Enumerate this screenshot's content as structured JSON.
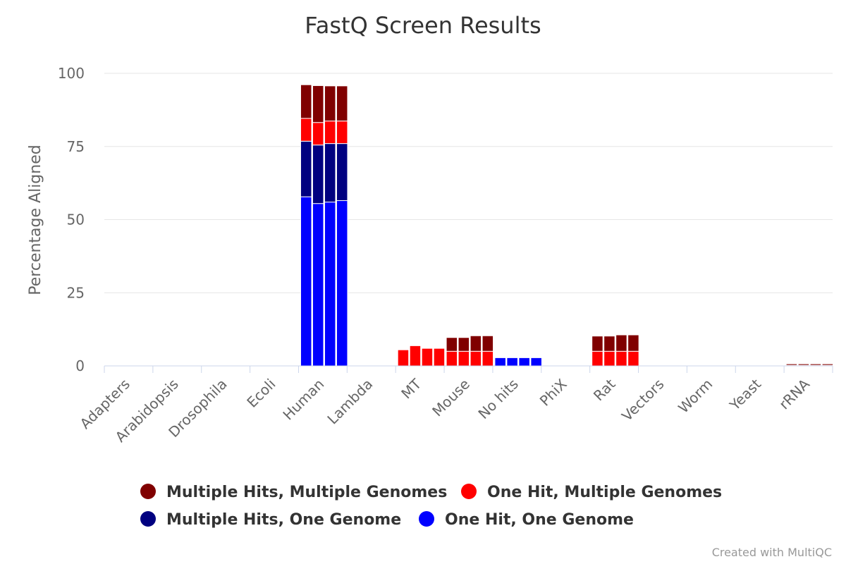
{
  "chart_data": {
    "type": "bar",
    "stacked": true,
    "title": "FastQ Screen Results",
    "xlabel": "",
    "ylabel": "Percentage Aligned",
    "ylim": [
      0,
      100
    ],
    "yticks": [
      0,
      25,
      50,
      75,
      100
    ],
    "grid": true,
    "legend_position": "bottom",
    "categories": [
      "Adapters",
      "Arabidopsis",
      "Drosophila",
      "Ecoli",
      "Human",
      "Lambda",
      "MT",
      "Mouse",
      "No hits",
      "PhiX",
      "Rat",
      "Vectors",
      "Worm",
      "Yeast",
      "rRNA"
    ],
    "samples_per_category": 4,
    "series": [
      {
        "name": "One Hit, One Genome",
        "color": "#0000ff",
        "values": [
          [
            0,
            0,
            0,
            0
          ],
          [
            0,
            0,
            0,
            0
          ],
          [
            0,
            0,
            0,
            0
          ],
          [
            0,
            0,
            0,
            0
          ],
          [
            57.8,
            55.5,
            56.0,
            56.5
          ],
          [
            0,
            0,
            0,
            0
          ],
          [
            0,
            0,
            0,
            0
          ],
          [
            0,
            0,
            0,
            0
          ],
          [
            2.8,
            2.8,
            2.8,
            2.8
          ],
          [
            0,
            0,
            0,
            0
          ],
          [
            0,
            0,
            0,
            0
          ],
          [
            0,
            0,
            0,
            0
          ],
          [
            0,
            0,
            0,
            0
          ],
          [
            0,
            0,
            0,
            0
          ],
          [
            0,
            0,
            0,
            0
          ]
        ]
      },
      {
        "name": "Multiple Hits, One Genome",
        "color": "#000080",
        "values": [
          [
            0,
            0,
            0,
            0
          ],
          [
            0,
            0,
            0,
            0
          ],
          [
            0,
            0,
            0,
            0
          ],
          [
            0,
            0,
            0,
            0
          ],
          [
            19.0,
            20.0,
            20.0,
            19.5
          ],
          [
            0,
            0,
            0,
            0
          ],
          [
            0,
            0,
            0,
            0
          ],
          [
            0,
            0,
            0,
            0
          ],
          [
            0,
            0,
            0,
            0
          ],
          [
            0,
            0,
            0,
            0
          ],
          [
            0,
            0,
            0,
            0
          ],
          [
            0,
            0,
            0,
            0
          ],
          [
            0,
            0,
            0,
            0
          ],
          [
            0,
            0,
            0,
            0
          ],
          [
            0,
            0,
            0,
            0
          ]
        ]
      },
      {
        "name": "One Hit, Multiple Genomes",
        "color": "#ff0000",
        "values": [
          [
            0,
            0,
            0,
            0
          ],
          [
            0,
            0,
            0,
            0
          ],
          [
            0,
            0,
            0,
            0
          ],
          [
            0,
            0,
            0,
            0
          ],
          [
            7.8,
            7.7,
            7.7,
            7.7
          ],
          [
            0,
            0,
            0,
            0
          ],
          [
            5.5,
            6.9,
            6.0,
            6.0
          ],
          [
            5.0,
            5.0,
            5.0,
            5.0
          ],
          [
            0,
            0,
            0,
            0
          ],
          [
            0,
            0,
            0,
            0
          ],
          [
            5.0,
            5.0,
            5.0,
            5.0
          ],
          [
            0,
            0,
            0,
            0
          ],
          [
            0,
            0,
            0,
            0
          ],
          [
            0,
            0,
            0,
            0
          ],
          [
            0.2,
            0.2,
            0.2,
            0.2
          ]
        ]
      },
      {
        "name": "Multiple Hits, Multiple Genomes",
        "color": "#800000",
        "values": [
          [
            0,
            0,
            0,
            0
          ],
          [
            0,
            0,
            0,
            0
          ],
          [
            0,
            0,
            0,
            0
          ],
          [
            0,
            0,
            0,
            0
          ],
          [
            11.5,
            12.6,
            12.0,
            12.0
          ],
          [
            0,
            0,
            0,
            0
          ],
          [
            0,
            0,
            0,
            0
          ],
          [
            4.7,
            4.7,
            5.3,
            5.3
          ],
          [
            0,
            0,
            0,
            0
          ],
          [
            0,
            0,
            0,
            0
          ],
          [
            5.2,
            5.2,
            5.6,
            5.6
          ],
          [
            0,
            0,
            0,
            0
          ],
          [
            0,
            0,
            0,
            0
          ],
          [
            0,
            0,
            0,
            0
          ],
          [
            0.5,
            0.5,
            0.5,
            0.5
          ]
        ]
      }
    ],
    "legend_order": [
      "Multiple Hits, Multiple Genomes",
      "One Hit, Multiple Genomes",
      "Multiple Hits, One Genome",
      "One Hit, One Genome"
    ]
  },
  "credit": "Created with MultiQC"
}
